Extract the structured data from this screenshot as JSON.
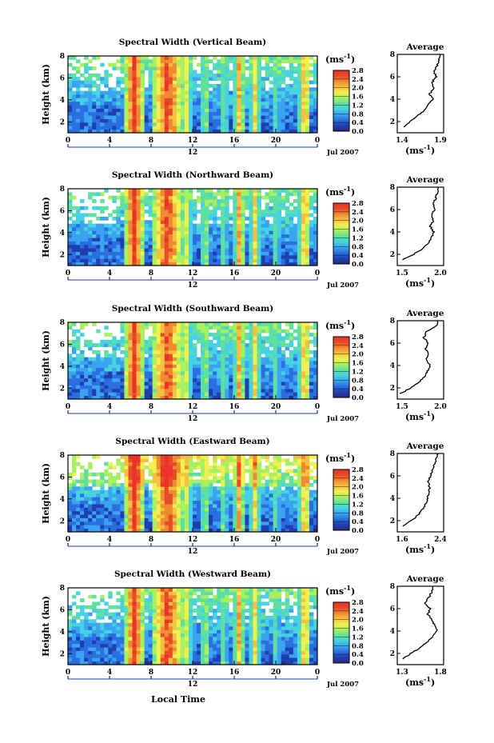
{
  "figure": {
    "xlabel": "Local Time",
    "date_label": "Jul 2007",
    "ylabel": "Height (km)",
    "colorbar_unit": "(ms",
    "colorbar_unit_sup": "-1",
    "colorbar_unit_close": ")",
    "colorbar_ticks": [
      "0.0",
      "0.4",
      "0.8",
      "1.2",
      "1.6",
      "2.0",
      "2.4",
      "2.8"
    ],
    "x_ticks": [
      "0",
      "4",
      "8",
      "12",
      "16",
      "20",
      "0"
    ],
    "secondary_tick": "12",
    "y_ticks": [
      "2",
      "4",
      "6",
      "8"
    ],
    "average_title": "Average",
    "average_unit": "(ms",
    "average_unit_sup": "-1",
    "average_unit_close": ")"
  },
  "chart_data": [
    {
      "type": "heatmap",
      "title": "Spectral Width (Vertical Beam)",
      "xlabel": "",
      "ylabel": "Height (km)",
      "x_range_hours": [
        0,
        24
      ],
      "y_range_km": [
        1,
        8
      ],
      "color_range_ms": [
        0.0,
        2.8
      ],
      "profile": {
        "title": "Average",
        "xlim": [
          1.3,
          1.9
        ],
        "xticks": [
          "1.4",
          "1.9"
        ],
        "ylim": [
          1,
          8
        ],
        "yticks": [
          "2",
          "4",
          "6",
          "8"
        ],
        "heights_km": [
          1.5,
          2.0,
          2.5,
          3.0,
          3.5,
          4.0,
          4.5,
          5.0,
          5.5,
          6.0,
          6.5,
          7.0,
          7.5,
          8.0
        ],
        "values_ms": [
          1.38,
          1.46,
          1.56,
          1.65,
          1.7,
          1.76,
          1.72,
          1.78,
          1.75,
          1.8,
          1.78,
          1.82,
          1.84,
          1.86
        ]
      }
    },
    {
      "type": "heatmap",
      "title": "Spectral Width (Northward Beam)",
      "xlabel": "",
      "ylabel": "Height (km)",
      "x_range_hours": [
        0,
        24
      ],
      "y_range_km": [
        1,
        8
      ],
      "color_range_ms": [
        0.0,
        2.8
      ],
      "profile": {
        "title": "Average",
        "xlim": [
          1.3,
          2.0
        ],
        "xticks": [
          "1.5",
          "2.0"
        ],
        "ylim": [
          1,
          8
        ],
        "yticks": [
          "2",
          "4",
          "6",
          "8"
        ],
        "heights_km": [
          1.5,
          2.0,
          2.5,
          3.0,
          3.5,
          4.0,
          4.5,
          5.0,
          5.5,
          6.0,
          6.5,
          7.0,
          7.5,
          8.0
        ],
        "values_ms": [
          1.38,
          1.55,
          1.68,
          1.78,
          1.82,
          1.85,
          1.8,
          1.84,
          1.82,
          1.86,
          1.84,
          1.88,
          1.9,
          1.92
        ]
      }
    },
    {
      "type": "heatmap",
      "title": "Spectral Width (Southward Beam)",
      "xlabel": "",
      "ylabel": "Height (km)",
      "x_range_hours": [
        0,
        24
      ],
      "y_range_km": [
        1,
        8
      ],
      "color_range_ms": [
        0.0,
        2.8
      ],
      "profile": {
        "title": "Average",
        "xlim": [
          1.4,
          2.1
        ],
        "xticks": [
          "1.5",
          "2.0"
        ],
        "ylim": [
          1,
          8
        ],
        "yticks": [
          "2",
          "4",
          "6",
          "8"
        ],
        "heights_km": [
          1.5,
          2.0,
          2.5,
          3.0,
          3.5,
          4.0,
          4.5,
          5.0,
          5.5,
          6.0,
          6.5,
          7.0,
          7.5,
          8.0
        ],
        "values_ms": [
          1.45,
          1.6,
          1.72,
          1.82,
          1.86,
          1.9,
          1.84,
          1.88,
          1.82,
          1.86,
          1.8,
          1.84,
          1.98,
          2.02
        ]
      }
    },
    {
      "type": "heatmap",
      "title": "Spectral Width (Eastward Beam)",
      "xlabel": "",
      "ylabel": "Height (km)",
      "x_range_hours": [
        0,
        24
      ],
      "y_range_km": [
        1,
        8
      ],
      "color_range_ms": [
        0.0,
        2.8
      ],
      "profile": {
        "title": "Average",
        "xlim": [
          1.5,
          2.5
        ],
        "xticks": [
          "1.6",
          "2.4"
        ],
        "ylim": [
          1,
          8
        ],
        "yticks": [
          "2",
          "4",
          "6",
          "8"
        ],
        "heights_km": [
          1.5,
          2.0,
          2.5,
          3.0,
          3.5,
          4.0,
          4.5,
          5.0,
          5.5,
          6.0,
          6.5,
          7.0,
          7.5,
          8.0
        ],
        "values_ms": [
          1.6,
          1.8,
          1.95,
          2.05,
          2.12,
          2.15,
          2.18,
          2.2,
          2.16,
          2.22,
          2.25,
          2.3,
          2.34,
          2.38
        ]
      }
    },
    {
      "type": "heatmap",
      "title": "Spectral Width (Westward Beam)",
      "xlabel": "Local Time",
      "ylabel": "Height (km)",
      "x_range_hours": [
        0,
        24
      ],
      "y_range_km": [
        1,
        8
      ],
      "color_range_ms": [
        0.0,
        2.8
      ],
      "profile": {
        "title": "Average",
        "xlim": [
          1.2,
          1.9
        ],
        "xticks": [
          "1.3",
          "1.8"
        ],
        "ylim": [
          1,
          8
        ],
        "yticks": [
          "2",
          "4",
          "6",
          "8"
        ],
        "heights_km": [
          1.5,
          2.0,
          2.5,
          3.0,
          3.5,
          4.0,
          4.5,
          5.0,
          5.5,
          6.0,
          6.5,
          7.0,
          7.5,
          8.0
        ],
        "values_ms": [
          1.28,
          1.4,
          1.55,
          1.65,
          1.74,
          1.8,
          1.76,
          1.72,
          1.66,
          1.7,
          1.62,
          1.68,
          1.72,
          1.75
        ]
      }
    }
  ]
}
